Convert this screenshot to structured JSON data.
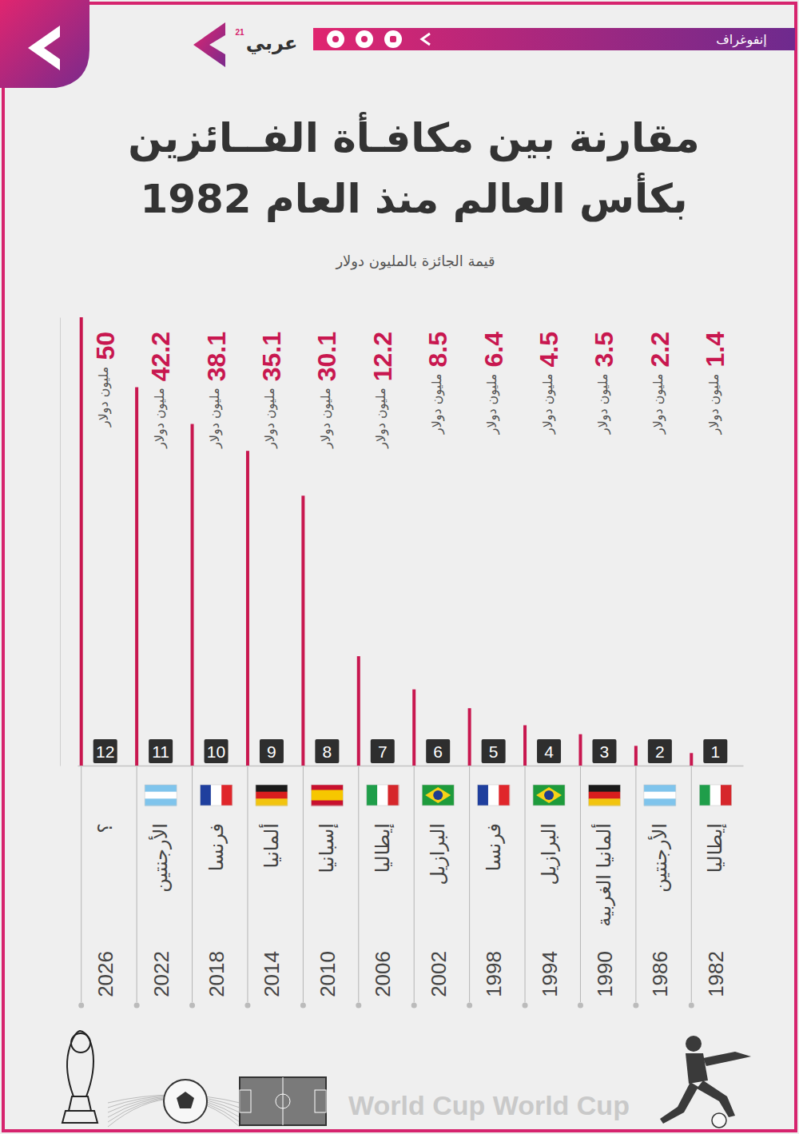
{
  "header": {
    "tag": "إنفوغراف",
    "brand": "عربي",
    "brand_sup": "21"
  },
  "chart_data": {
    "type": "bar",
    "title": [
      "مقارنة بين مكافـأة الفــائزين",
      "بكأس العالم منذ العام 1982"
    ],
    "subtitle": "قيمة الجائزة بالمليون دولار",
    "categories": [
      "1982",
      "1986",
      "1990",
      "1994",
      "1998",
      "2002",
      "2006",
      "2010",
      "2014",
      "2018",
      "2022",
      "2026"
    ],
    "values": [
      1.4,
      2.2,
      3.5,
      4.5,
      6.4,
      8.5,
      12.2,
      30.1,
      35.1,
      38.1,
      42.2,
      50
    ],
    "value_unit": "مليون دولار",
    "winners": [
      "إيطاليا",
      "الأرجنتين",
      "ألمانيا الغربية",
      "البرازيل",
      "فرنسا",
      "البرازيل",
      "إيطاليا",
      "إسبانيا",
      "ألمانيا",
      "فرنسا",
      "الأرجنتين",
      "؟"
    ],
    "numbers": [
      1,
      2,
      3,
      4,
      5,
      6,
      7,
      8,
      9,
      10,
      11,
      12
    ],
    "color": "#c8174f",
    "ylim": [
      0,
      50
    ],
    "data_labels": true,
    "tick_labels": "x",
    "grid": false
  },
  "footer": {
    "text": "World Cup World Cup"
  }
}
